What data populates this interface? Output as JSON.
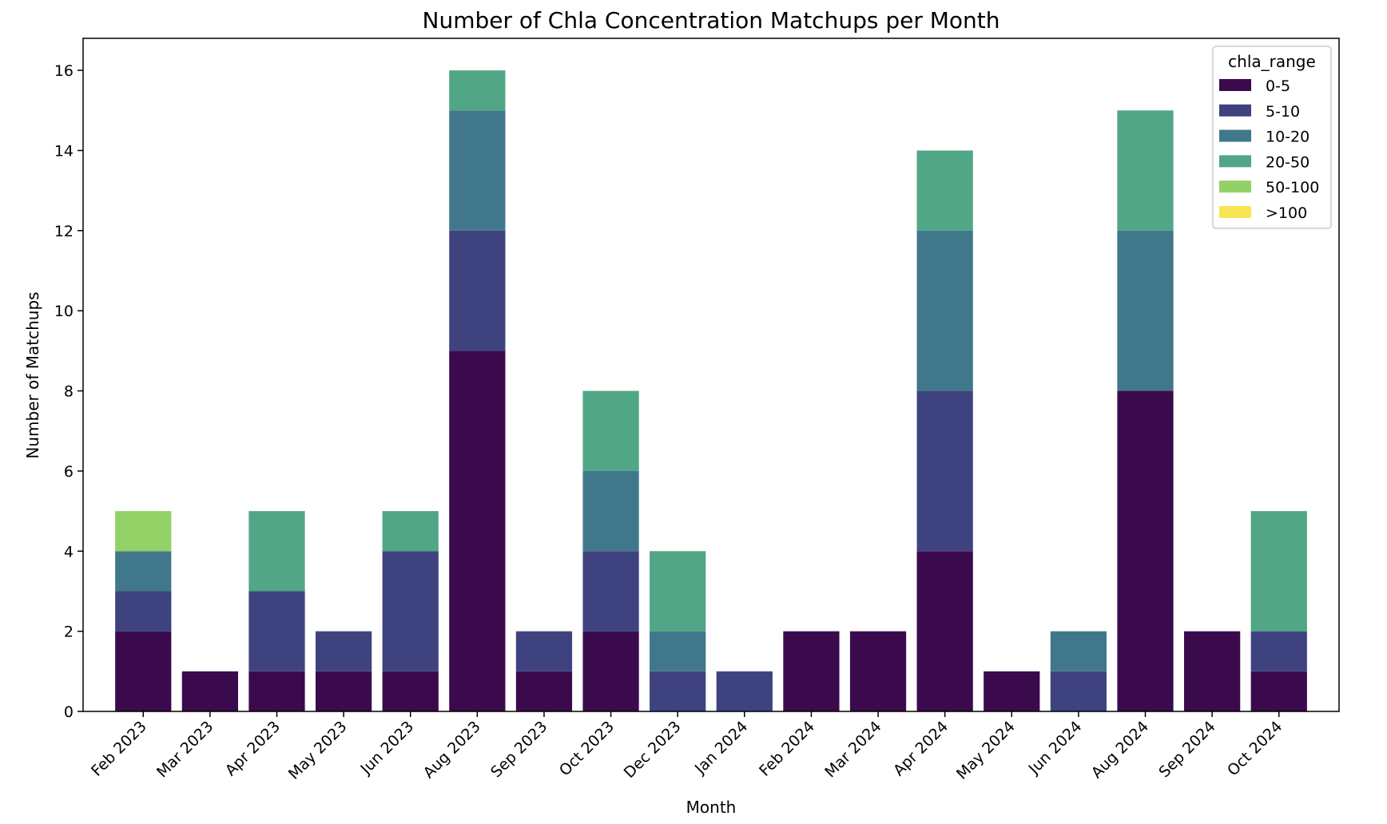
{
  "chart_data": {
    "type": "bar",
    "stacked": true,
    "title": "Number of Chla Concentration Matchups per Month",
    "xlabel": "Month",
    "ylabel": "Number of Matchups",
    "ylim": [
      0,
      16.8
    ],
    "yticks": [
      0,
      2,
      4,
      6,
      8,
      10,
      12,
      14,
      16
    ],
    "grid": false,
    "legend": {
      "title": "chla_range",
      "placement": "top-right"
    },
    "categories": [
      "Feb 2023",
      "Mar 2023",
      "Apr 2023",
      "May 2023",
      "Jun 2023",
      "Aug 2023",
      "Sep 2023",
      "Oct 2023",
      "Dec 2023",
      "Jan 2024",
      "Feb 2024",
      "Mar 2024",
      "Apr 2024",
      "May 2024",
      "Jun 2024",
      "Aug 2024",
      "Sep 2024",
      "Oct 2024"
    ],
    "series": [
      {
        "name": "0-5",
        "color": "#3b0a4d",
        "values": [
          2,
          1,
          1,
          1,
          1,
          9,
          1,
          2,
          0,
          0,
          2,
          2,
          4,
          1,
          0,
          8,
          2,
          1
        ]
      },
      {
        "name": "5-10",
        "color": "#3e4380",
        "values": [
          1,
          0,
          2,
          1,
          3,
          3,
          1,
          2,
          1,
          1,
          0,
          0,
          4,
          0,
          1,
          0,
          0,
          1
        ]
      },
      {
        "name": "10-20",
        "color": "#41778b",
        "values": [
          1,
          0,
          0,
          0,
          0,
          3,
          0,
          2,
          1,
          0,
          0,
          0,
          4,
          0,
          1,
          4,
          0,
          0
        ]
      },
      {
        "name": "20-50",
        "color": "#51a685",
        "values": [
          0,
          0,
          2,
          0,
          1,
          1,
          0,
          2,
          2,
          0,
          0,
          0,
          2,
          0,
          0,
          3,
          0,
          3
        ]
      },
      {
        "name": "50-100",
        "color": "#93d166",
        "values": [
          1,
          0,
          0,
          0,
          0,
          0,
          0,
          0,
          0,
          0,
          0,
          0,
          0,
          0,
          0,
          0,
          0,
          0
        ]
      },
      {
        "name": ">100",
        "color": "#f8e553",
        "values": [
          0,
          0,
          0,
          0,
          0,
          0,
          0,
          0,
          0,
          0,
          0,
          0,
          0,
          0,
          0,
          0,
          0,
          0
        ]
      }
    ]
  }
}
